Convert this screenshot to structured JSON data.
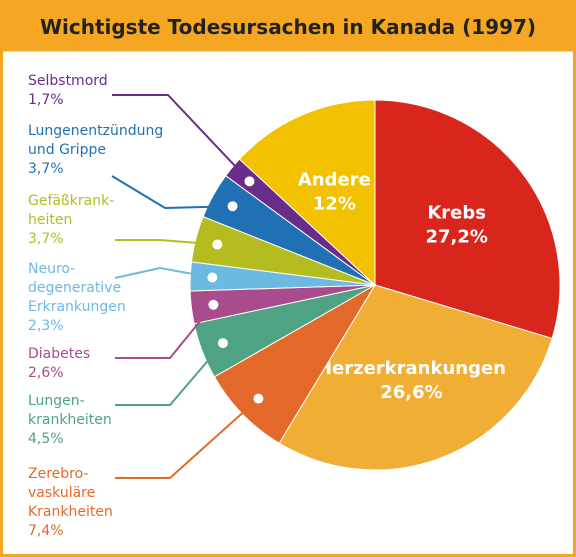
{
  "chart_data": {
    "type": "pie",
    "title": "Wichtigste Todesursachen in Kanada (1997)",
    "categories": [
      "Krebs",
      "Herzerkrankungen",
      "Zerebro-\nvaskuläre\nKrankheiten",
      "Lungen-\nkrankheiten",
      "Diabetes",
      "Neuro-\ndegenerative\nErkrankungen",
      "Gefäßkrank-\nheiten",
      "Lungenentzündung\nund Grippe",
      "Selbstmord",
      "Andere"
    ],
    "values": [
      27.2,
      26.6,
      7.4,
      4.5,
      2.6,
      2.3,
      3.7,
      3.7,
      1.7,
      12
    ],
    "value_labels": [
      "27,2%",
      "26,6%",
      "7,4%",
      "4,5%",
      "2,6%",
      "2,3%",
      "3,7%",
      "3,7%",
      "1,7%",
      "12%"
    ],
    "colors": [
      "#d8261d",
      "#f0ae35",
      "#e3692a",
      "#4ea383",
      "#a84c8e",
      "#6cb9e1",
      "#b4bc1f",
      "#1f71b3",
      "#6a2c89",
      "#f2c100"
    ]
  }
}
